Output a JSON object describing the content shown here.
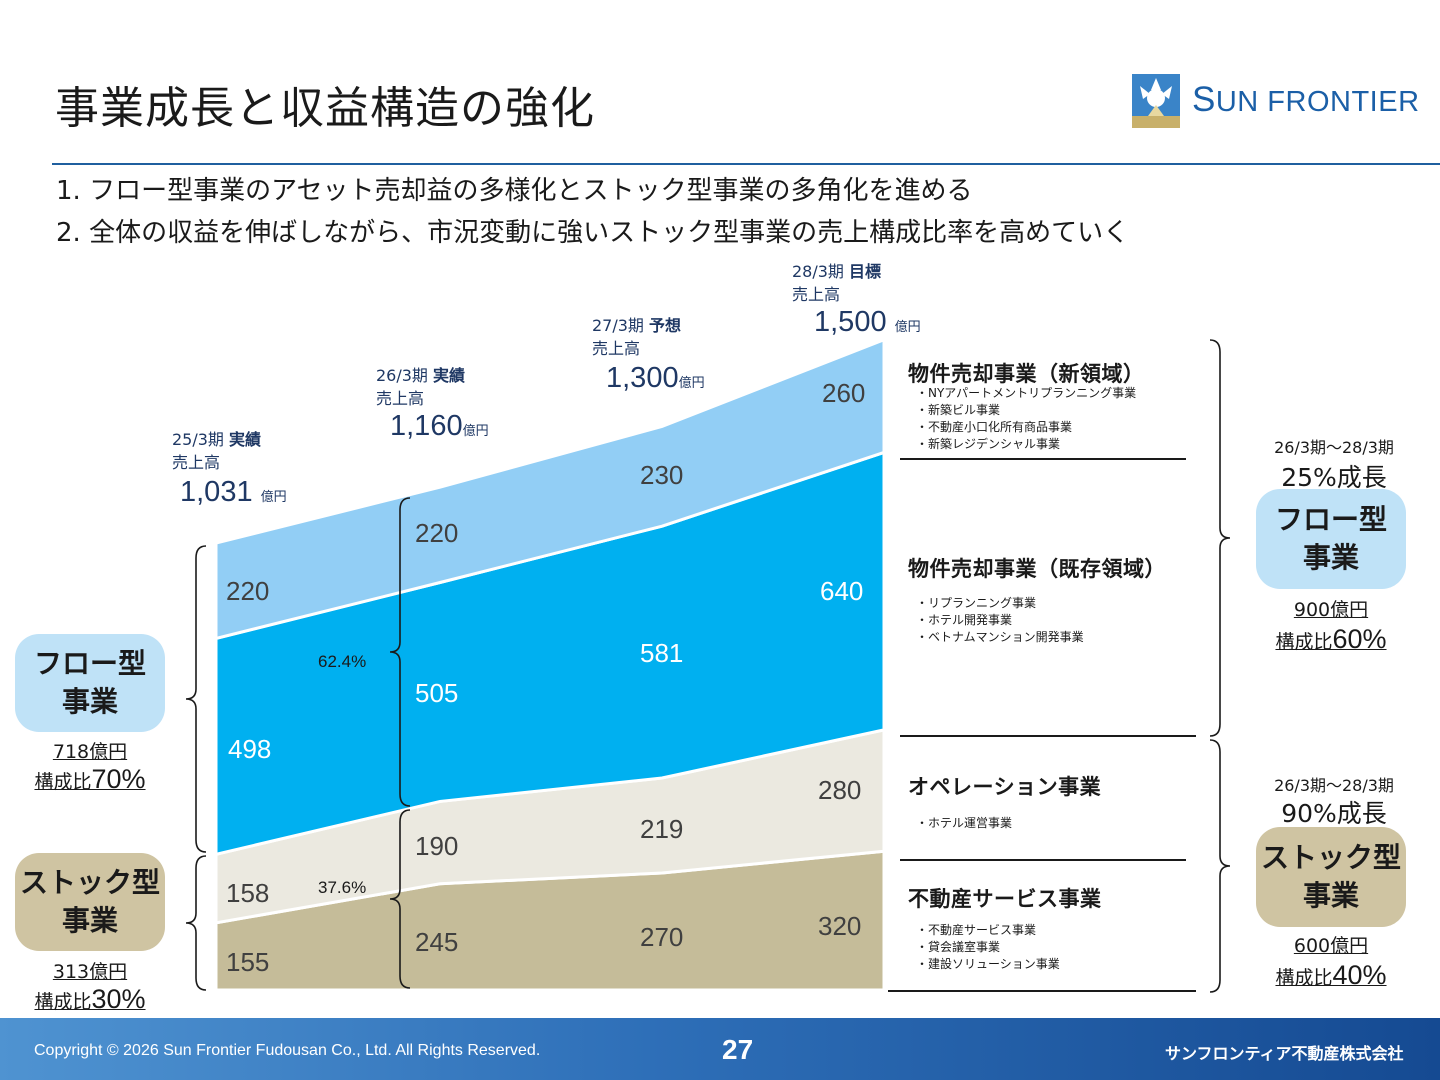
{
  "title": "事業成長と収益構造の強化",
  "bullets": [
    "1. フロー型事業のアセット売却益の多様化とストック型事業の多角化を進める",
    "2. 全体の収益を伸ばしながら、市況変動に強いストック型事業の売上構成比率を高めていく"
  ],
  "logo": {
    "text_prefix": "S",
    "text_rest": "UN FRONTIER",
    "icon": "sun-frontier-logo-icon"
  },
  "colors": {
    "new_sales": "#92cef5",
    "existing_sales": "#00b0f0",
    "operation": "#ebe9e0",
    "service": "#c5bc99",
    "flow_pill": "#bfe2f7",
    "stock_pill": "#cfc4a2",
    "accent": "#1f3864"
  },
  "periods": [
    {
      "period": "25/3期",
      "status": "実績",
      "label": "売上高",
      "total": "1,031",
      "unit": "億円"
    },
    {
      "period": "26/3期",
      "status": "実績",
      "label": "売上高",
      "total": "1,160",
      "unit": "億円"
    },
    {
      "period": "27/3期",
      "status": "予想",
      "label": "売上高",
      "total": "1,300",
      "unit": "億円"
    },
    {
      "period": "28/3期",
      "status": "目標",
      "label": "売上高",
      "total": "1,500",
      "unit": "億円"
    }
  ],
  "chart_data": {
    "type": "area",
    "stacked": true,
    "categories": [
      "25/3期",
      "26/3期",
      "27/3期",
      "28/3期"
    ],
    "series": [
      {
        "name": "不動産サービス事業",
        "values": [
          155,
          245,
          270,
          320
        ]
      },
      {
        "name": "オペレーション事業",
        "values": [
          158,
          190,
          219,
          280
        ]
      },
      {
        "name": "物件売却事業（既存領域）",
        "values": [
          498,
          505,
          581,
          640
        ]
      },
      {
        "name": "物件売却事業（新領域）",
        "values": [
          220,
          220,
          230,
          260
        ]
      }
    ],
    "annotations": {
      "flow_share_26": "62.4%",
      "stock_share_26": "37.6%"
    }
  },
  "segments": [
    {
      "title": "物件売却事業（新領域）",
      "items": [
        "・NYアパートメントリプランニング事業",
        "・新築ビル事業",
        "・不動産小口化所有商品事業",
        "・新築レジデンシャル事業"
      ]
    },
    {
      "title": "物件売却事業（既存領域）",
      "items": [
        "・リプランニング事業",
        "・ホテル開発事業",
        "・ベトナムマンション開発事業"
      ]
    },
    {
      "title": "オペレーション事業",
      "items": [
        "・ホテル運営事業"
      ]
    },
    {
      "title": "不動産サービス事業",
      "items": [
        "・不動産サービス事業",
        "・貸会議室事業",
        "・建設ソリューション事業"
      ]
    }
  ],
  "left": {
    "flow": {
      "line1": "フロー型",
      "line2": "事業",
      "amount": "718億円",
      "ratio_label": "構成比",
      "ratio": "70%"
    },
    "stock": {
      "line1": "ストック型",
      "line2": "事業",
      "amount": "313億円",
      "ratio_label": "構成比",
      "ratio": "30%"
    }
  },
  "right": {
    "flow": {
      "period": "26/3期～28/3期",
      "growth": "25%成長",
      "line1": "フロー型",
      "line2": "事業",
      "amount": "900億円",
      "ratio_label": "構成比",
      "ratio": "60%"
    },
    "stock": {
      "period": "26/3期～28/3期",
      "growth": "90%成長",
      "line1": "ストック型",
      "line2": "事業",
      "amount": "600億円",
      "ratio_label": "構成比",
      "ratio": "40%"
    }
  },
  "footer": {
    "copyright": "Copyright © 2026 Sun Frontier Fudousan Co., Ltd. All Rights Reserved.",
    "page": "27",
    "company": "サンフロンティア不動産株式会社"
  }
}
